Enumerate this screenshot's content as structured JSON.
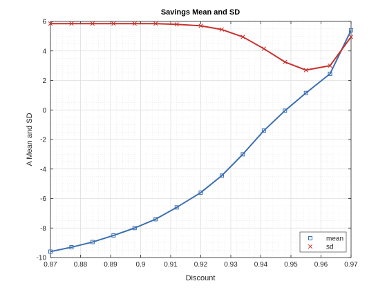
{
  "chart_data": {
    "type": "line",
    "title": "Savings Mean and SD",
    "xlabel": "Discount",
    "ylabel": "A Mean and SD",
    "xlim": [
      0.87,
      0.97
    ],
    "ylim": [
      -10,
      6
    ],
    "xticks": [
      0.87,
      0.88,
      0.89,
      0.9,
      0.91,
      0.92,
      0.93,
      0.94,
      0.95,
      0.96,
      0.97
    ],
    "xtick_labels": [
      "0.87",
      "0.88",
      "0.89",
      "0.9",
      "0.91",
      "0.92",
      "0.93",
      "0.94",
      "0.95",
      "0.96",
      "0.97"
    ],
    "yticks": [
      -10,
      -8,
      -6,
      -4,
      -2,
      0,
      2,
      4,
      6
    ],
    "ytick_labels": [
      "-10",
      "-8",
      "-6",
      "-4",
      "-2",
      "0",
      "2",
      "4",
      "6"
    ],
    "grid": true,
    "minor_grid": true,
    "legend_position": "bottom-right",
    "x": [
      0.87,
      0.877,
      0.884,
      0.891,
      0.898,
      0.905,
      0.912,
      0.92,
      0.927,
      0.934,
      0.941,
      0.948,
      0.955,
      0.963,
      0.97
    ],
    "series": [
      {
        "name": "mean",
        "marker": "square",
        "color": "#3a6fb0",
        "values": [
          -9.6,
          -9.3,
          -8.95,
          -8.5,
          -8.0,
          -7.4,
          -6.6,
          -5.6,
          -4.45,
          -3.0,
          -1.4,
          -0.05,
          1.15,
          2.45,
          5.4
        ]
      },
      {
        "name": "sd",
        "marker": "x",
        "color": "#c9302c",
        "values": [
          5.85,
          5.85,
          5.85,
          5.85,
          5.85,
          5.85,
          5.8,
          5.7,
          5.45,
          4.95,
          4.15,
          3.25,
          2.7,
          3.0,
          4.95
        ]
      }
    ]
  }
}
